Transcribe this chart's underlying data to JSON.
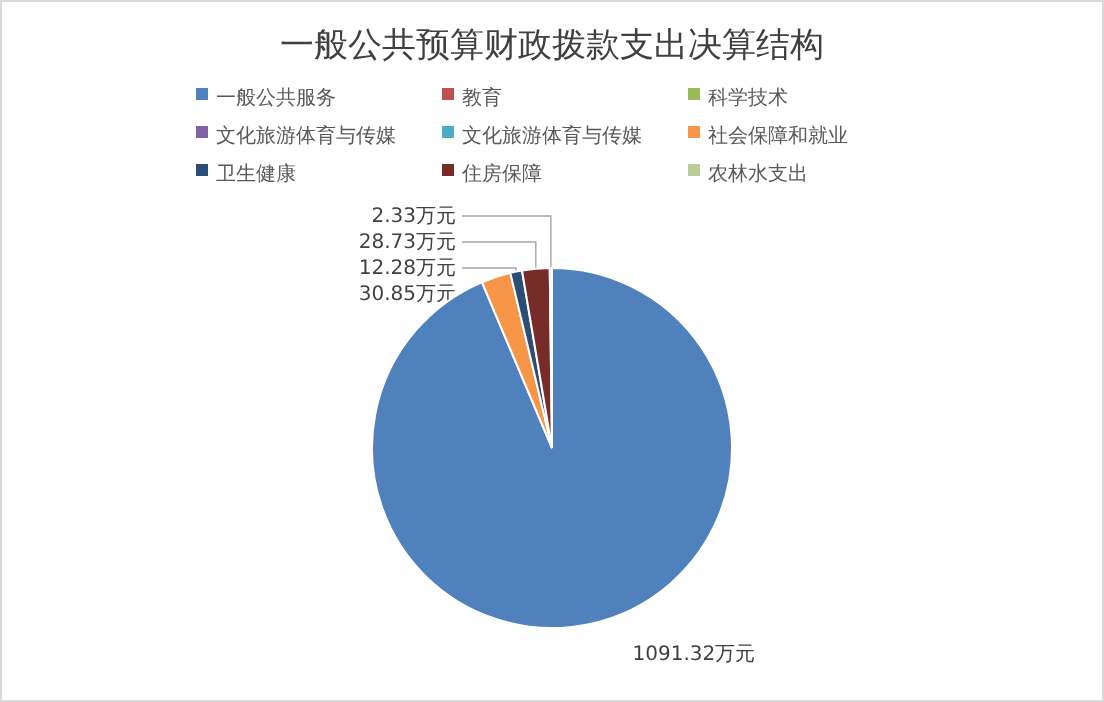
{
  "chart_data": {
    "type": "pie",
    "title": "一般公共预算财政拨款支出决算结构",
    "categories": [
      "一般公共服务",
      "教育",
      "科学技术",
      "文化旅游体育与传媒",
      "文化旅游体育与传媒",
      "社会保障和就业",
      "卫生健康",
      "住房保障",
      "农林水支出"
    ],
    "values": [
      1091.32,
      0,
      0,
      0,
      0,
      30.85,
      12.28,
      28.73,
      2.33
    ],
    "value_labels": [
      "1091.32万元",
      null,
      null,
      null,
      null,
      "30.85万元",
      "12.28万元",
      "28.73万元",
      "2.33万元"
    ],
    "colors": [
      "#4f81bd",
      "#c0504d",
      "#9bbb59",
      "#8064a2",
      "#4bacc6",
      "#f79646",
      "#2c4d75",
      "#772c2a",
      "#b9cd96"
    ],
    "legend": "top"
  }
}
